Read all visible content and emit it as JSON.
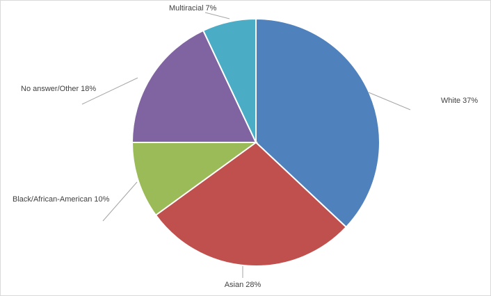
{
  "chart_data": {
    "type": "pie",
    "categories": [
      "White",
      "Asian",
      "Black/African-American",
      "No answer/Other",
      "Multiracial"
    ],
    "values": [
      37,
      28,
      10,
      18,
      7
    ],
    "value_labels": [
      "37%",
      "28%",
      "10%",
      "18%",
      "7%"
    ],
    "colors": [
      "#4f81bd",
      "#c0504d",
      "#9bbb59",
      "#8064a2",
      "#4bacc6"
    ]
  }
}
